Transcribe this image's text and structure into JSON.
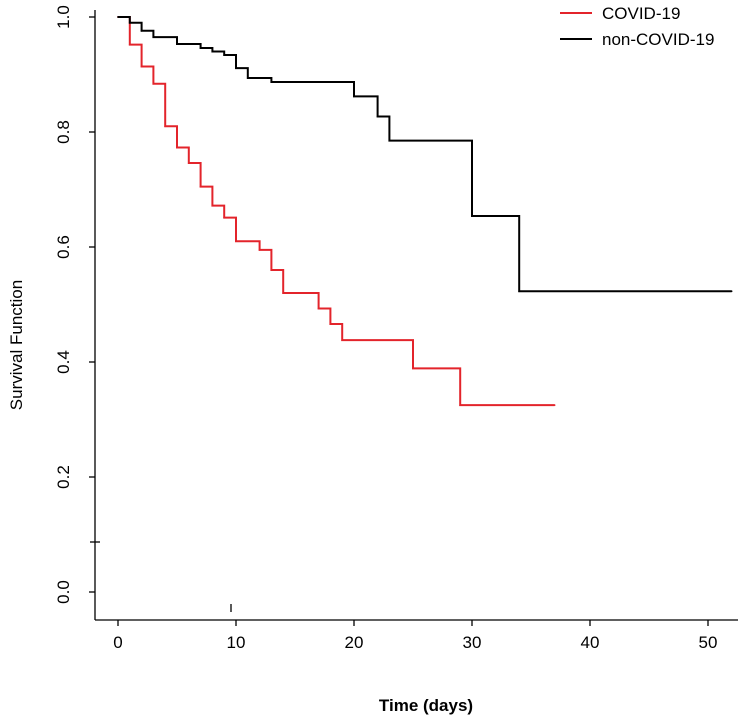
{
  "chart_data": {
    "type": "line",
    "subtype": "kaplan-meier-step",
    "title": "",
    "xlabel": "Time (days)",
    "ylabel": "Survival Function",
    "xlim": [
      -2,
      53
    ],
    "ylim": [
      -0.04,
      1.02
    ],
    "x_ticks": [
      0,
      10,
      20,
      30,
      40,
      50
    ],
    "y_ticks": [
      0.0,
      0.2,
      0.4,
      0.6,
      0.8,
      1.0
    ],
    "x_tick_labels": [
      "0",
      "10",
      "20",
      "30",
      "40",
      "50"
    ],
    "y_tick_labels": [
      "0.0",
      "0.2",
      "0.4",
      "0.6",
      "0.8",
      "1.0"
    ],
    "legend": "top-right",
    "series": [
      {
        "name": "COVID-19",
        "color": "#e3242b",
        "x": [
          0,
          1,
          2,
          3,
          4,
          5,
          6,
          7,
          8,
          9,
          10,
          12,
          13,
          14,
          17,
          18,
          19,
          25,
          29,
          37
        ],
        "y": [
          1.0,
          0.952,
          0.914,
          0.884,
          0.81,
          0.773,
          0.746,
          0.705,
          0.672,
          0.651,
          0.61,
          0.595,
          0.56,
          0.52,
          0.493,
          0.466,
          0.438,
          0.389,
          0.325,
          0.325
        ]
      },
      {
        "name": "non-COVID-19",
        "color": "#000000",
        "x": [
          0,
          1,
          2,
          3,
          5,
          7,
          8,
          9,
          10,
          11,
          13,
          20,
          22,
          23,
          30,
          34,
          52
        ],
        "y": [
          1.0,
          0.99,
          0.976,
          0.965,
          0.953,
          0.946,
          0.94,
          0.934,
          0.911,
          0.894,
          0.887,
          0.862,
          0.827,
          0.785,
          0.654,
          0.523,
          0.523
        ]
      }
    ]
  }
}
